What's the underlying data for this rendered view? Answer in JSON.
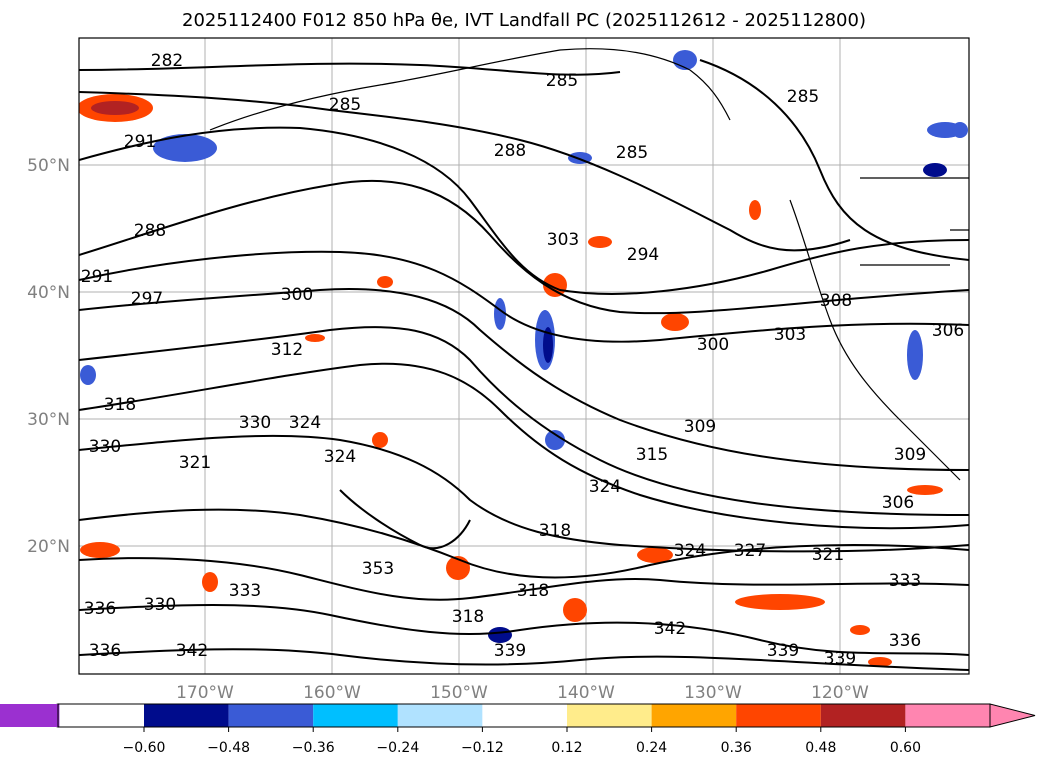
{
  "title": "2025112400 F012 850 hPa θe, IVT Landfall PC (2025112612 - 2025112800)",
  "map": {
    "lon_ticks": [
      "170°W",
      "160°W",
      "150°W",
      "140°W",
      "130°W",
      "120°W"
    ],
    "lat_ticks": [
      "50°N",
      "40°N",
      "30°N",
      "20°N"
    ],
    "grid": true,
    "contour_labels": [
      "282",
      "285",
      "285",
      "285",
      "291",
      "288",
      "285",
      "288",
      "291",
      "297",
      "300",
      "303",
      "294",
      "312",
      "300",
      "303",
      "318",
      "330",
      "324",
      "330",
      "321",
      "324",
      "309",
      "315",
      "308",
      "306",
      "309",
      "306",
      "324",
      "318",
      "324",
      "327",
      "321",
      "333",
      "353",
      "318",
      "333",
      "330",
      "336",
      "318",
      "342",
      "339",
      "339",
      "336",
      "342",
      "339",
      "336"
    ]
  },
  "colorbar": {
    "labels": [
      "−0.60",
      "−0.48",
      "−0.36",
      "−0.24",
      "−0.12",
      "0.12",
      "0.24",
      "0.36",
      "0.48",
      "0.60"
    ],
    "colors": [
      "#9b30d0",
      "#000c8c",
      "#3a5bd6",
      "#00bfff",
      "#b0e2ff",
      "#ffffff",
      "#ffec8b",
      "#ffa500",
      "#ff4500",
      "#b22222",
      "#ff85b0",
      "#ff85b0"
    ],
    "end_left_color": "#9b30d0",
    "end_right_color": "#ff85b0"
  }
}
